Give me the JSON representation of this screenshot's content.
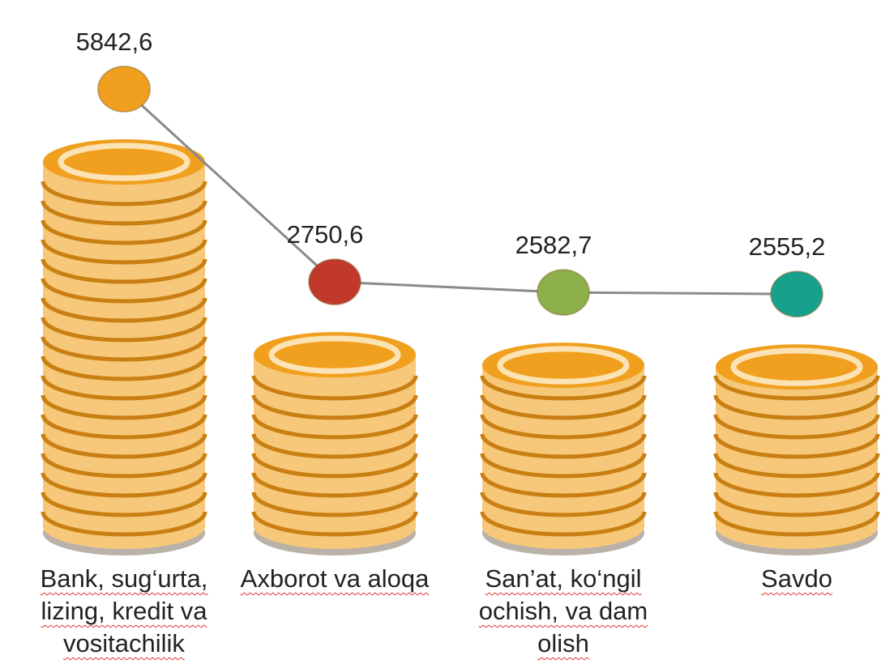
{
  "chart_data": {
    "type": "coin-line",
    "categories": [
      "Bank, sug‘urta, lizing, kredit va vositachilik",
      "Axborot va aloqa",
      "San’at, ko‘ngil ochish, va dam olish",
      "Savdo"
    ],
    "values": [
      5842.6,
      2750.6,
      2582.7,
      2555.2
    ],
    "value_labels": [
      "5842,6",
      "2750,6",
      "2582,7",
      "2555,2"
    ],
    "colors": [
      "#f0a01e",
      "#c0392b",
      "#8db04a",
      "#17a18d"
    ],
    "line_color": "#8a8a8a"
  }
}
